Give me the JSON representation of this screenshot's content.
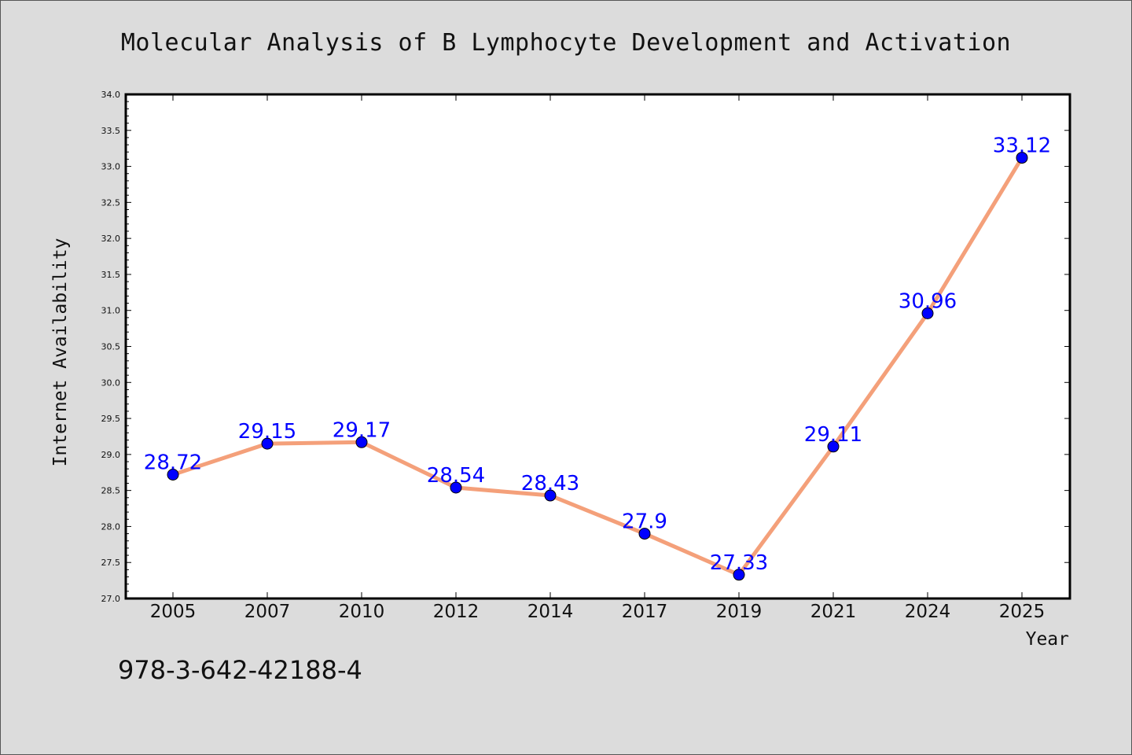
{
  "chart_data": {
    "type": "line",
    "title": "Molecular Analysis of B Lymphocyte Development and Activation",
    "xlabel": "Year",
    "ylabel": "Internet Availability",
    "categories": [
      "2005",
      "2007",
      "2010",
      "2012",
      "2014",
      "2017",
      "2019",
      "2021",
      "2024",
      "2025"
    ],
    "values": [
      28.72,
      29.15,
      29.17,
      28.54,
      28.43,
      27.9,
      27.33,
      29.11,
      30.96,
      33.12
    ],
    "value_labels": [
      "28.72",
      "29.15",
      "29.17",
      "28.54",
      "28.43",
      "27.9",
      "27.33",
      "29.11",
      "30.96",
      "33.12"
    ],
    "ylim": [
      27.0,
      34.0
    ],
    "yticks": [
      "27.0",
      "27.5",
      "28.0",
      "28.5",
      "29.0",
      "29.5",
      "30.0",
      "30.5",
      "31.0",
      "31.5",
      "32.0",
      "32.5",
      "33.0",
      "33.5",
      "34.0"
    ],
    "grid": false,
    "line_color": "#f4a07a",
    "marker_color": "#0000ff",
    "label_color": "#0000ff"
  },
  "footer": {
    "isbn": "978-3-642-42188-4"
  }
}
